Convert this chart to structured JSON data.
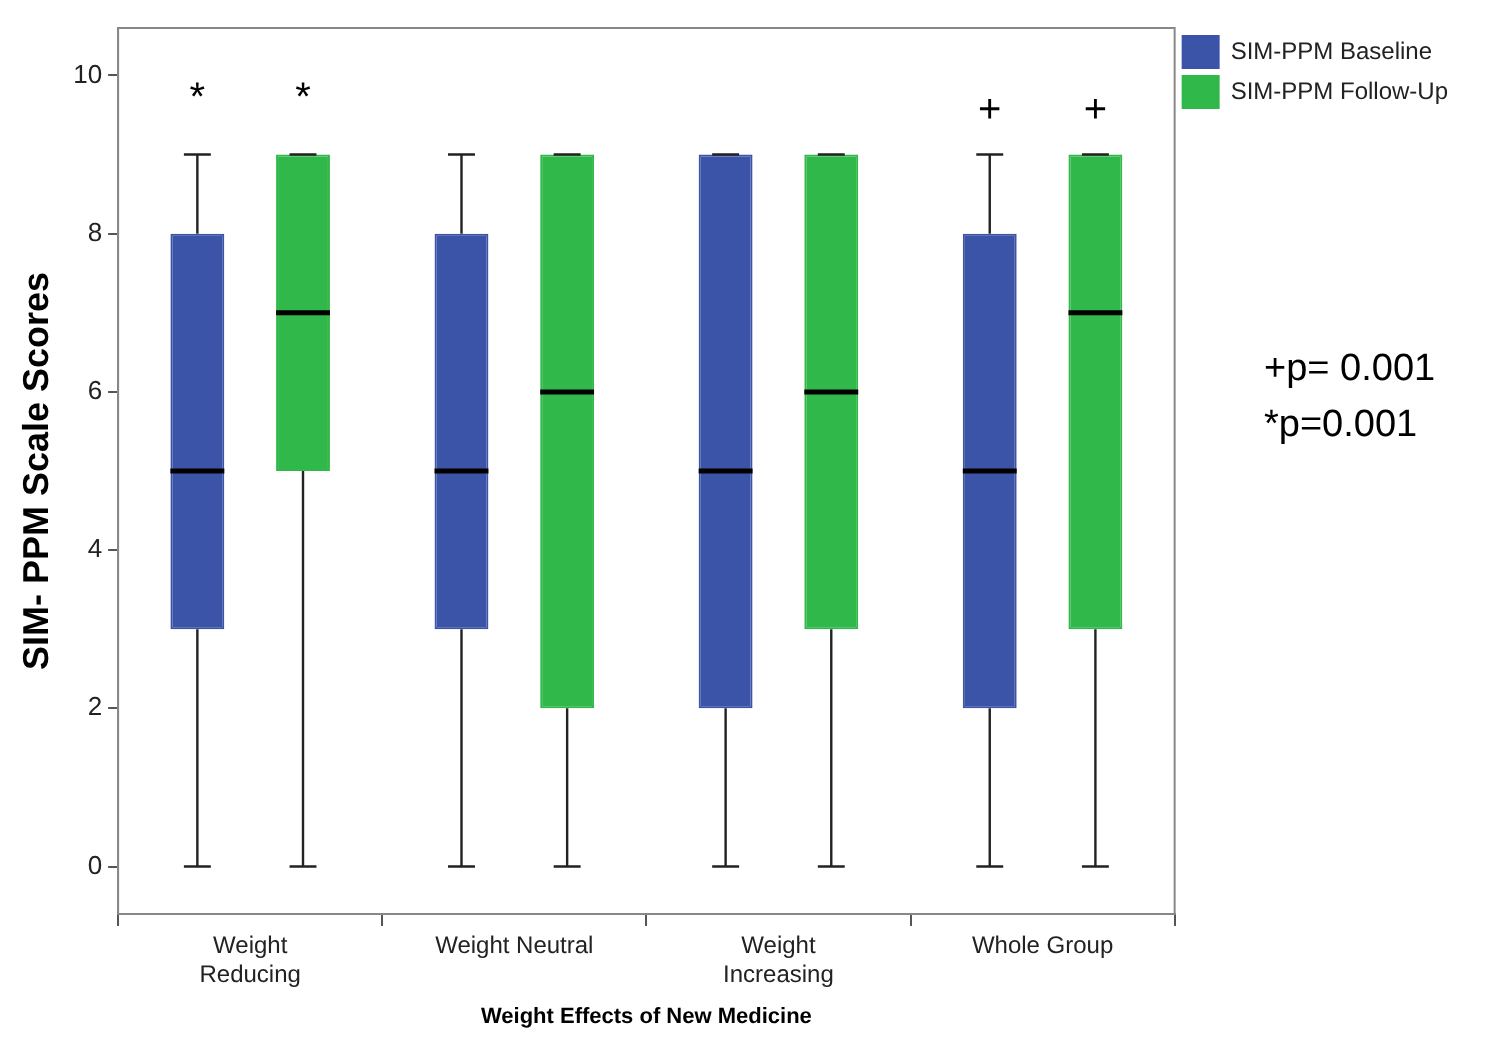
{
  "chart_data": {
    "type": "box",
    "xlabel": "Weight Effects of New Medicine",
    "ylabel": "SIM- PPM Scale Scores",
    "categories": [
      "Weight\nReducing",
      "Weight Neutral",
      "Weight\nIncreasing",
      "Whole Group"
    ],
    "series": [
      {
        "name": "SIM-PPM Baseline",
        "color": "#3c54a8",
        "boxes": [
          {
            "low": 0,
            "q1": 3,
            "median": 5,
            "q3": 8,
            "high": 9
          },
          {
            "low": 0,
            "q1": 3,
            "median": 5,
            "q3": 8,
            "high": 9
          },
          {
            "low": 0,
            "q1": 2,
            "median": 5,
            "q3": 9,
            "high": 9
          },
          {
            "low": 0,
            "q1": 2,
            "median": 5,
            "q3": 8,
            "high": 9
          }
        ]
      },
      {
        "name": "SIM-PPM Follow-Up",
        "color": "#30b84a",
        "boxes": [
          {
            "low": 0,
            "q1": 5,
            "median": 7,
            "q3": 9,
            "high": 9
          },
          {
            "low": 0,
            "q1": 2,
            "median": 6,
            "q3": 9,
            "high": 9
          },
          {
            "low": 0,
            "q1": 3,
            "median": 6,
            "q3": 9,
            "high": 9
          },
          {
            "low": 0,
            "q1": 3,
            "median": 7,
            "q3": 9,
            "high": 9
          }
        ]
      }
    ],
    "ylim": [
      -0.6,
      10.6
    ],
    "yticks": [
      0,
      2,
      4,
      6,
      8,
      10
    ],
    "grid": false,
    "legend": "top right",
    "annotations": [
      "*",
      "*",
      "+",
      "+",
      "+p= 0.001",
      "*p=0.001"
    ]
  }
}
